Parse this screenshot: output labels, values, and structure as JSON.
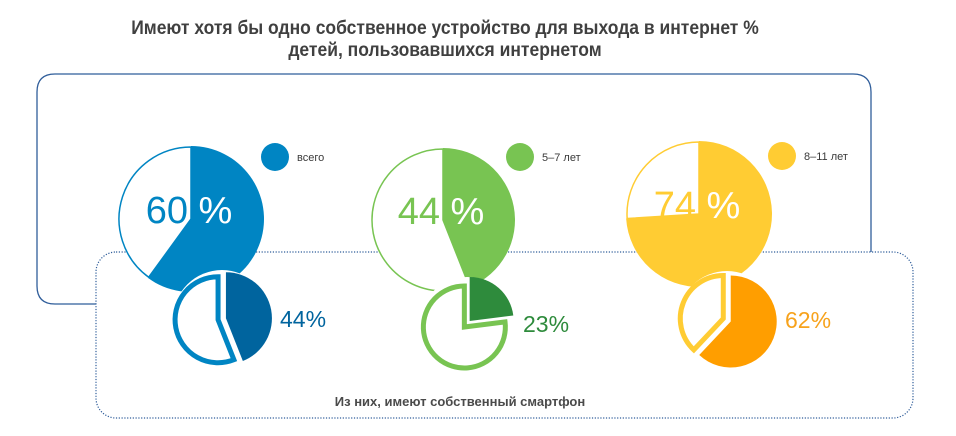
{
  "chart_data": {
    "type": "pie",
    "title": "Имеют хотя бы одно собственное устройство для выхода в интернет % детей, пользовавшихся интернетом",
    "title_lines": [
      "Имеют хотя бы одно собственное устройство для выхода в интернет %",
      "детей, пользовавшихся интернетом"
    ],
    "subtitle": "Из них, имеют собственный смартфон",
    "groups": [
      {
        "name": "всего",
        "own_device_pct": 60,
        "own_device_label": "60 %",
        "smartphone_pct": 44,
        "smartphone_label": "44%",
        "color": "#0085C3",
        "smartphone_color": "#00649E",
        "smartphone_label_color": "#00649E"
      },
      {
        "name": "5–7 лет",
        "own_device_pct": 44,
        "own_device_label": "44 %",
        "smartphone_pct": 23,
        "smartphone_label": "23%",
        "color": "#78C452",
        "smartphone_color": "#2E8B3C",
        "smartphone_label_color": "#2E8B3C"
      },
      {
        "name": "8–11 лет",
        "own_device_pct": 74,
        "own_device_label": "74 %",
        "smartphone_pct": 62,
        "smartphone_label": "62%",
        "color": "#FFCC33",
        "smartphone_color": "#FF9E00",
        "smartphone_label_color": "#F7A21B"
      }
    ]
  },
  "colors": {
    "outer_frame": "#2F5D9A",
    "inner_frame": "#2F5D9A",
    "title": "#404040"
  }
}
